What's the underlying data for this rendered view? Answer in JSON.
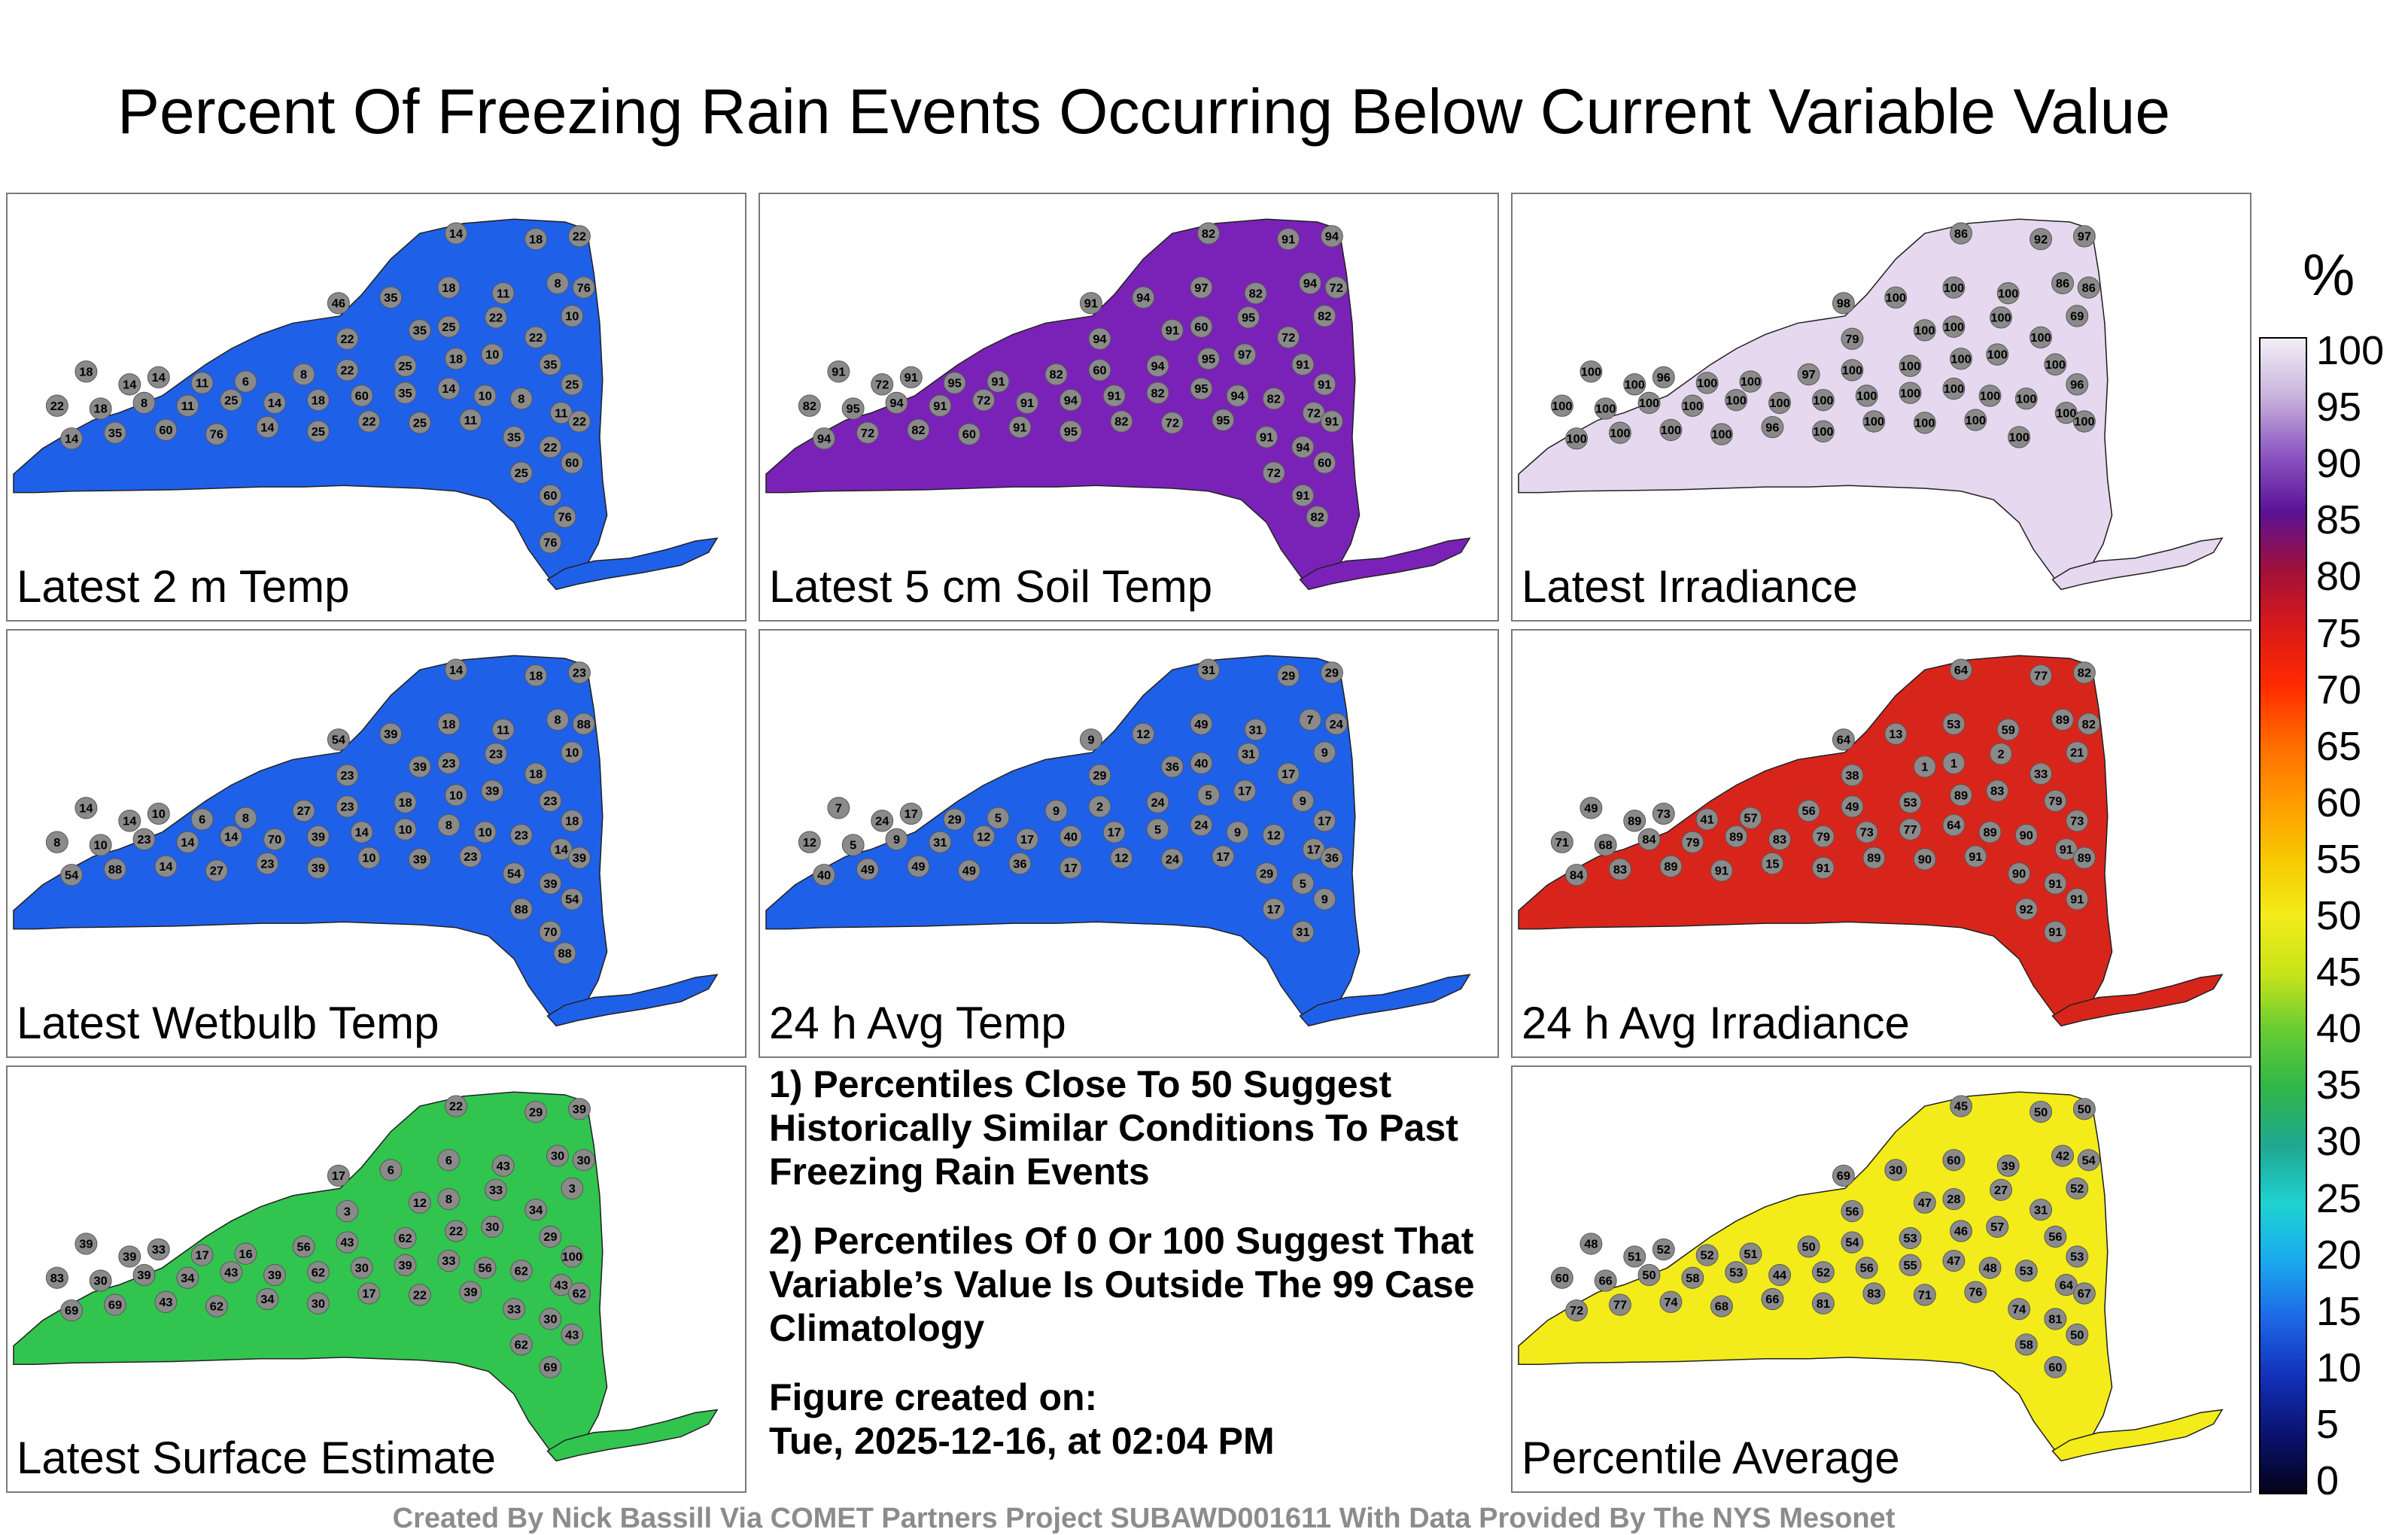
{
  "title": "Percent Of Freezing Rain Events Occurring Below Current Variable Value",
  "panels": [
    {
      "label": "Latest 2 m Temp",
      "fill": "#1f60e8",
      "values": [
        "14",
        "18",
        "22",
        "76",
        "46",
        "35",
        "18",
        "11",
        "8",
        "10",
        "22",
        "35",
        "25",
        "22",
        "22",
        "18",
        "14",
        "14",
        "11",
        "6",
        "8",
        "22",
        "25",
        "18",
        "10",
        "35",
        "25",
        "22",
        "18",
        "8",
        "11",
        "25",
        "14",
        "18",
        "60",
        "35",
        "14",
        "10",
        "8",
        "11",
        "22",
        "14",
        "35",
        "60",
        "76",
        "14",
        "25",
        "22",
        "25",
        "11",
        "35",
        "22",
        "60",
        "25",
        "60",
        "76",
        "76"
      ]
    },
    {
      "label": "Latest 5 cm Soil Temp",
      "fill": "#7a22b8",
      "values": [
        "82",
        "91",
        "94",
        "72",
        "91",
        "94",
        "97",
        "82",
        "94",
        "82",
        "94",
        "91",
        "60",
        "95",
        "72",
        "91",
        "72",
        "91",
        "95",
        "91",
        "82",
        "60",
        "94",
        "95",
        "97",
        "91",
        "91",
        "82",
        "95",
        "94",
        "91",
        "72",
        "91",
        "94",
        "91",
        "82",
        "95",
        "94",
        "82",
        "72",
        "91",
        "94",
        "72",
        "82",
        "60",
        "91",
        "95",
        "82",
        "72",
        "95",
        "91",
        "94",
        "60",
        "72",
        "91",
        "82"
      ]
    },
    {
      "label": "Latest Irradiance",
      "fill": "#e6d8ee",
      "values": [
        "86",
        "92",
        "97",
        "86",
        "98",
        "100",
        "100",
        "100",
        "86",
        "69",
        "79",
        "100",
        "100",
        "100",
        "100",
        "100",
        "100",
        "96",
        "100",
        "100",
        "97",
        "100",
        "100",
        "100",
        "100",
        "100",
        "96",
        "100",
        "100",
        "100",
        "100",
        "100",
        "100",
        "100",
        "100",
        "100",
        "100",
        "100",
        "100",
        "100",
        "100",
        "100",
        "100",
        "100",
        "100",
        "96",
        "100",
        "100",
        "100",
        "100",
        "100"
      ]
    },
    {
      "label": "Latest Wetbulb Temp",
      "fill": "#1f60e8",
      "values": [
        "14",
        "18",
        "23",
        "88",
        "54",
        "39",
        "18",
        "11",
        "8",
        "10",
        "23",
        "39",
        "23",
        "23",
        "18",
        "14",
        "14",
        "10",
        "6",
        "8",
        "27",
        "23",
        "18",
        "10",
        "39",
        "23",
        "18",
        "8",
        "10",
        "23",
        "14",
        "14",
        "70",
        "39",
        "14",
        "10",
        "8",
        "10",
        "23",
        "14",
        "39",
        "54",
        "88",
        "14",
        "27",
        "23",
        "39",
        "10",
        "39",
        "23",
        "54",
        "39",
        "54",
        "88",
        "70",
        "88"
      ]
    },
    {
      "label": "24 h Avg Temp",
      "fill": "#1f60e8",
      "values": [
        "31",
        "29",
        "29",
        "24",
        "9",
        "12",
        "49",
        "31",
        "7",
        "9",
        "29",
        "36",
        "40",
        "31",
        "17",
        "7",
        "24",
        "17",
        "29",
        "5",
        "9",
        "2",
        "24",
        "5",
        "17",
        "9",
        "17",
        "12",
        "5",
        "9",
        "31",
        "12",
        "17",
        "40",
        "17",
        "5",
        "24",
        "9",
        "12",
        "17",
        "36",
        "40",
        "49",
        "49",
        "49",
        "36",
        "17",
        "12",
        "24",
        "17",
        "29",
        "5",
        "9",
        "17",
        "31"
      ]
    },
    {
      "label": "24 h Avg Irradiance",
      "fill": "#d8251c",
      "values": [
        "64",
        "77",
        "82",
        "82",
        "64",
        "13",
        "53",
        "59",
        "89",
        "21",
        "38",
        "1",
        "1",
        "2",
        "33",
        "49",
        "89",
        "73",
        "41",
        "57",
        "56",
        "49",
        "53",
        "89",
        "83",
        "79",
        "73",
        "71",
        "68",
        "84",
        "79",
        "89",
        "83",
        "79",
        "73",
        "77",
        "64",
        "89",
        "90",
        "91",
        "89",
        "84",
        "83",
        "89",
        "91",
        "15",
        "91",
        "89",
        "90",
        "91",
        "90",
        "91",
        "91",
        "92",
        "91"
      ]
    },
    {
      "label": "Latest Surface Estimate",
      "fill": "#31c44f",
      "values": [
        "22",
        "29",
        "39",
        "30",
        "17",
        "6",
        "6",
        "43",
        "30",
        "3",
        "3",
        "12",
        "8",
        "33",
        "34",
        "39",
        "39",
        "33",
        "17",
        "16",
        "56",
        "43",
        "62",
        "22",
        "30",
        "29",
        "100",
        "83",
        "30",
        "39",
        "34",
        "43",
        "39",
        "62",
        "30",
        "39",
        "33",
        "56",
        "62",
        "43",
        "62",
        "69",
        "69",
        "43",
        "62",
        "34",
        "30",
        "17",
        "22",
        "39",
        "33",
        "30",
        "43",
        "62",
        "69"
      ]
    },
    {
      "label": "Percentile Average",
      "fill": "#f3ec1a",
      "values": [
        "45",
        "50",
        "50",
        "54",
        "69",
        "30",
        "60",
        "39",
        "42",
        "52",
        "56",
        "47",
        "28",
        "27",
        "31",
        "48",
        "51",
        "52",
        "52",
        "51",
        "50",
        "54",
        "53",
        "46",
        "57",
        "56",
        "53",
        "60",
        "66",
        "50",
        "58",
        "53",
        "44",
        "52",
        "56",
        "55",
        "47",
        "48",
        "53",
        "64",
        "67",
        "72",
        "77",
        "74",
        "68",
        "66",
        "81",
        "83",
        "71",
        "76",
        "74",
        "81",
        "50",
        "58",
        "60"
      ]
    }
  ],
  "notes": {
    "note1": "1) Percentiles Close To 50 Suggest Historically Similar Conditions To Past Freezing Rain Events",
    "note2": "2) Percentiles Of 0 Or 100 Suggest That Variable’s Value Is Outside The 99 Case Climatology",
    "created_label": "Figure created on:",
    "created_date": "Tue, 2025-12-16, at 02:04 PM"
  },
  "colorbar": {
    "unit": "%",
    "ticks": [
      "100",
      "95",
      "90",
      "85",
      "80",
      "75",
      "70",
      "65",
      "60",
      "55",
      "50",
      "45",
      "40",
      "35",
      "30",
      "25",
      "20",
      "15",
      "10",
      "5",
      "0"
    ],
    "colors": [
      "#f2eef6",
      "#c9b3dc",
      "#8d57c2",
      "#5a1296",
      "#a0103a",
      "#d91a1a",
      "#ff2a00",
      "#ff6a00",
      "#ff9a00",
      "#f7c800",
      "#f3ec1a",
      "#c8e41a",
      "#66cc33",
      "#2fb64a",
      "#1fa892",
      "#1fd2d2",
      "#1aa8ee",
      "#1d66e6",
      "#1230b8",
      "#0a1270",
      "#050318"
    ]
  },
  "footer": "Created By Nick Bassill Via COMET Partners Project SUBAWD001611 With Data Provided By The NYS Mesonet"
}
